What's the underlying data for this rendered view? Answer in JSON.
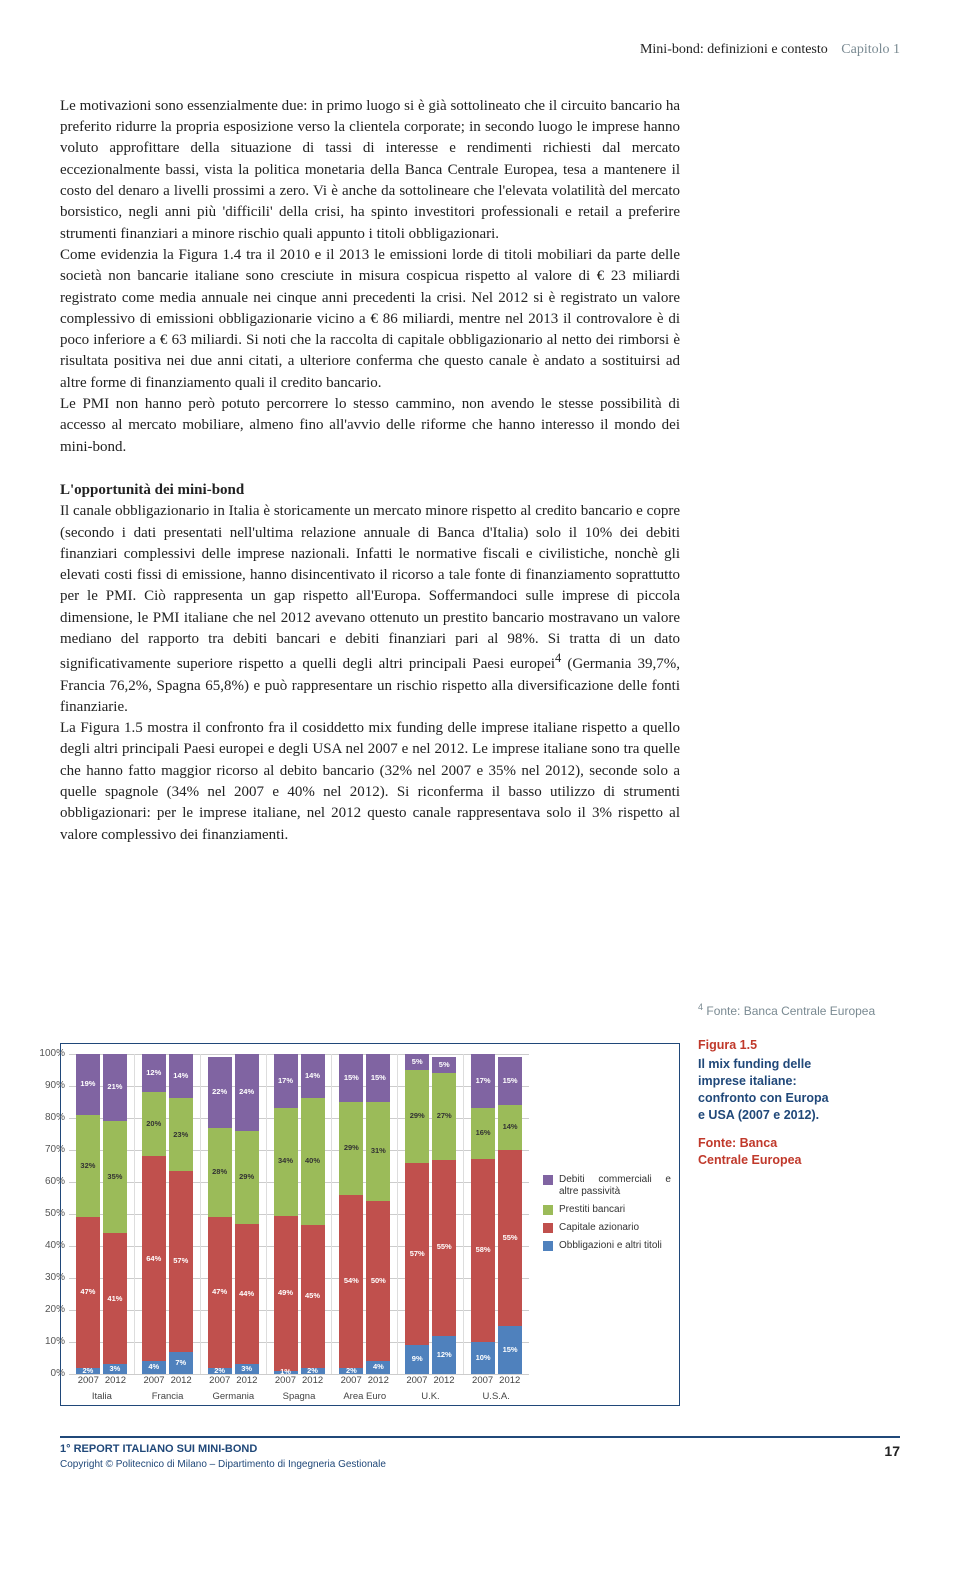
{
  "header": {
    "title": "Mini-bond: definizioni e contesto",
    "chapter": "Capitolo 1"
  },
  "body": {
    "p1": "Le motivazioni sono essenzialmente due: in primo luogo si è già sottolineato che il circuito bancario ha preferito ridurre la propria esposizione verso la clientela corporate; in secondo luogo le imprese hanno voluto approfittare della situazione di tassi di interesse e rendimenti richiesti dal mercato eccezionalmente bassi, vista la politica monetaria della Banca Centrale Europea, tesa a mantenere il costo del denaro a livelli prossimi a zero. Vi è anche da sottolineare che l'elevata volatilità del mercato borsistico, negli anni più 'difficili' della crisi, ha spinto investitori professionali e retail a preferire strumenti finanziari a minore rischio quali appunto i titoli obbligazionari.",
    "p2": "Come evidenzia la Figura 1.4 tra il 2010 e il 2013 le emissioni lorde di titoli mobiliari da parte delle società non bancarie italiane sono cresciute in misura cospicua rispetto al valore di € 23 miliardi registrato come media annuale nei cinque anni precedenti la crisi. Nel 2012 si è registrato un valore complessivo di emissioni obbligazionarie vicino a € 86 miliardi, mentre nel 2013 il controvalore è di poco inferiore a € 63 miliardi. Si noti che la raccolta di capitale obbligazionario al netto dei rimborsi è risultata positiva nei due anni citati, a ulteriore conferma che questo canale è andato a sostituirsi ad altre forme di finanziamento quali il credito bancario.",
    "p3": "Le PMI non hanno però potuto percorrere lo stesso cammino, non avendo le stesse possibilità di accesso al mercato mobiliare, almeno fino all'avvio delle riforme che hanno interesso il mondo dei mini-bond.",
    "h2": "L'opportunità dei mini-bond",
    "p4a": "Il canale obbligazionario in Italia è storicamente un mercato minore rispetto al credito bancario e copre (secondo i dati presentati nell'ultima relazione annuale di Banca d'Italia) solo il 10% dei debiti finanziari complessivi delle imprese nazionali. Infatti le normative fiscali e civilistiche, nonchè gli elevati costi fissi di emissione, hanno disincentivato il ricorso a tale fonte di finanziamento soprattutto per le PMI. Ciò rappresenta un gap rispetto all'Europa. Soffermandoci sulle imprese di piccola dimensione, le PMI italiane che nel 2012 avevano ottenuto un prestito bancario mostravano un valore mediano del rapporto tra debiti bancari e debiti finanziari pari al 98%. Si tratta di un dato significativamente superiore rispetto a quelli degli altri principali Paesi europei",
    "p4b": " (Germania 39,7%, Francia 76,2%, Spagna 65,8%) e può rappresentare un rischio rispetto alla diversificazione delle fonti finanziarie.",
    "p5": "La Figura 1.5 mostra il confronto fra il cosiddetto mix funding delle imprese italiane rispetto a quello degli altri principali Paesi europei e degli USA nel 2007 e nel 2012. Le imprese italiane sono tra quelle che hanno fatto maggior ricorso al debito bancario (32% nel 2007 e 35% nel 2012), seconde solo a quelle spagnole (34% nel 2007 e 40% nel 2012). Si riconferma il basso utilizzo di strumenti obbligazionari: per le imprese italiane, nel 2012 questo canale rappresentava solo il 3% rispetto al valore complessivo dei finanziamenti."
  },
  "footnote4": "Fonte: Banca Centrale Europea",
  "figure": {
    "label": "Figura 1.5",
    "title_line1": "Il mix funding delle",
    "title_line2": "imprese italiane:",
    "title_line3": "confronto con Europa",
    "title_line4": "e USA (2007 e 2012).",
    "source_line1": "Fonte: Banca",
    "source_line2": "Centrale Europea"
  },
  "chart": {
    "type": "stacked-bar-percent",
    "ylim": [
      0,
      100
    ],
    "ytick_step": 10,
    "colors": {
      "debiti": "#8064a2",
      "prestiti": "#9bbb59",
      "capitale": "#c0504d",
      "obbligazioni": "#4f81bd",
      "grid": "#cccccc"
    },
    "legend": [
      {
        "key": "debiti",
        "label": "Debiti commerciali e altre  passività"
      },
      {
        "key": "prestiti",
        "label": "Prestiti bancari"
      },
      {
        "key": "capitale",
        "label": "Capitale azionario"
      },
      {
        "key": "obbligazioni",
        "label": "Obbligazioni e altri titoli"
      }
    ],
    "countries": [
      "Italia",
      "Francia",
      "Germania",
      "Spagna",
      "Area Euro",
      "U.K.",
      "U.S.A."
    ],
    "years": [
      "2007",
      "2012"
    ],
    "data": [
      {
        "country": "Italia",
        "bars": [
          {
            "year": "2007",
            "segs": [
              {
                "k": "obbligazioni",
                "v": 2
              },
              {
                "k": "capitale",
                "v": 47
              },
              {
                "k": "prestiti",
                "v": 32
              },
              {
                "k": "debiti",
                "v": 19
              }
            ]
          },
          {
            "year": "2012",
            "segs": [
              {
                "k": "obbligazioni",
                "v": 3
              },
              {
                "k": "capitale",
                "v": 41
              },
              {
                "k": "prestiti",
                "v": 35
              },
              {
                "k": "debiti",
                "v": 21
              }
            ]
          }
        ]
      },
      {
        "country": "Francia",
        "bars": [
          {
            "year": "2007",
            "segs": [
              {
                "k": "obbligazioni",
                "v": 4
              },
              {
                "k": "capitale",
                "v": 64
              },
              {
                "k": "prestiti",
                "v": 20
              },
              {
                "k": "debiti",
                "v": 12
              }
            ]
          },
          {
            "year": "2012",
            "segs": [
              {
                "k": "obbligazioni",
                "v": 7
              },
              {
                "k": "capitale",
                "v": 57
              },
              {
                "k": "prestiti",
                "v": 23
              },
              {
                "k": "debiti",
                "v": 14
              }
            ]
          }
        ]
      },
      {
        "country": "Germania",
        "bars": [
          {
            "year": "2007",
            "segs": [
              {
                "k": "obbligazioni",
                "v": 2
              },
              {
                "k": "capitale",
                "v": 47
              },
              {
                "k": "prestiti",
                "v": 28
              },
              {
                "k": "debiti",
                "v": 22
              }
            ]
          },
          {
            "year": "2012",
            "segs": [
              {
                "k": "obbligazioni",
                "v": 3
              },
              {
                "k": "capitale",
                "v": 44
              },
              {
                "k": "prestiti",
                "v": 29
              },
              {
                "k": "debiti",
                "v": 24
              }
            ]
          }
        ]
      },
      {
        "country": "Spagna",
        "bars": [
          {
            "year": "2007",
            "segs": [
              {
                "k": "obbligazioni",
                "v": 1
              },
              {
                "k": "capitale",
                "v": 49
              },
              {
                "k": "prestiti",
                "v": 34
              },
              {
                "k": "debiti",
                "v": 17
              }
            ]
          },
          {
            "year": "2012",
            "segs": [
              {
                "k": "obbligazioni",
                "v": 2
              },
              {
                "k": "capitale",
                "v": 45
              },
              {
                "k": "prestiti",
                "v": 40
              },
              {
                "k": "debiti",
                "v": 14
              }
            ]
          }
        ]
      },
      {
        "country": "Area Euro",
        "bars": [
          {
            "year": "2007",
            "segs": [
              {
                "k": "obbligazioni",
                "v": 2
              },
              {
                "k": "capitale",
                "v": 54
              },
              {
                "k": "prestiti",
                "v": 29
              },
              {
                "k": "debiti",
                "v": 15
              }
            ]
          },
          {
            "year": "2012",
            "segs": [
              {
                "k": "obbligazioni",
                "v": 4
              },
              {
                "k": "capitale",
                "v": 50
              },
              {
                "k": "prestiti",
                "v": 31
              },
              {
                "k": "debiti",
                "v": 15
              }
            ]
          }
        ]
      },
      {
        "country": "U.K.",
        "bars": [
          {
            "year": "2007",
            "segs": [
              {
                "k": "obbligazioni",
                "v": 9
              },
              {
                "k": "capitale",
                "v": 57
              },
              {
                "k": "prestiti",
                "v": 29
              },
              {
                "k": "debiti",
                "v": 5
              }
            ]
          },
          {
            "year": "2012",
            "segs": [
              {
                "k": "obbligazioni",
                "v": 12
              },
              {
                "k": "capitale",
                "v": 55
              },
              {
                "k": "prestiti",
                "v": 27
              },
              {
                "k": "debiti",
                "v": 5
              }
            ]
          }
        ]
      },
      {
        "country": "U.S.A.",
        "bars": [
          {
            "year": "2007",
            "segs": [
              {
                "k": "obbligazioni",
                "v": 10
              },
              {
                "k": "capitale",
                "v": 58
              },
              {
                "k": "prestiti",
                "v": 16
              },
              {
                "k": "debiti",
                "v": 17
              }
            ]
          },
          {
            "year": "2012",
            "segs": [
              {
                "k": "obbligazioni",
                "v": 15
              },
              {
                "k": "capitale",
                "v": 55
              },
              {
                "k": "prestiti",
                "v": 14
              },
              {
                "k": "debiti",
                "v": 15
              }
            ]
          }
        ]
      }
    ]
  },
  "footer": {
    "line1": "1° REPORT ITALIANO SUI MINI-BOND",
    "line2": "Copyright © Politecnico di Milano – Dipartimento di Ingegneria Gestionale",
    "page": "17"
  }
}
